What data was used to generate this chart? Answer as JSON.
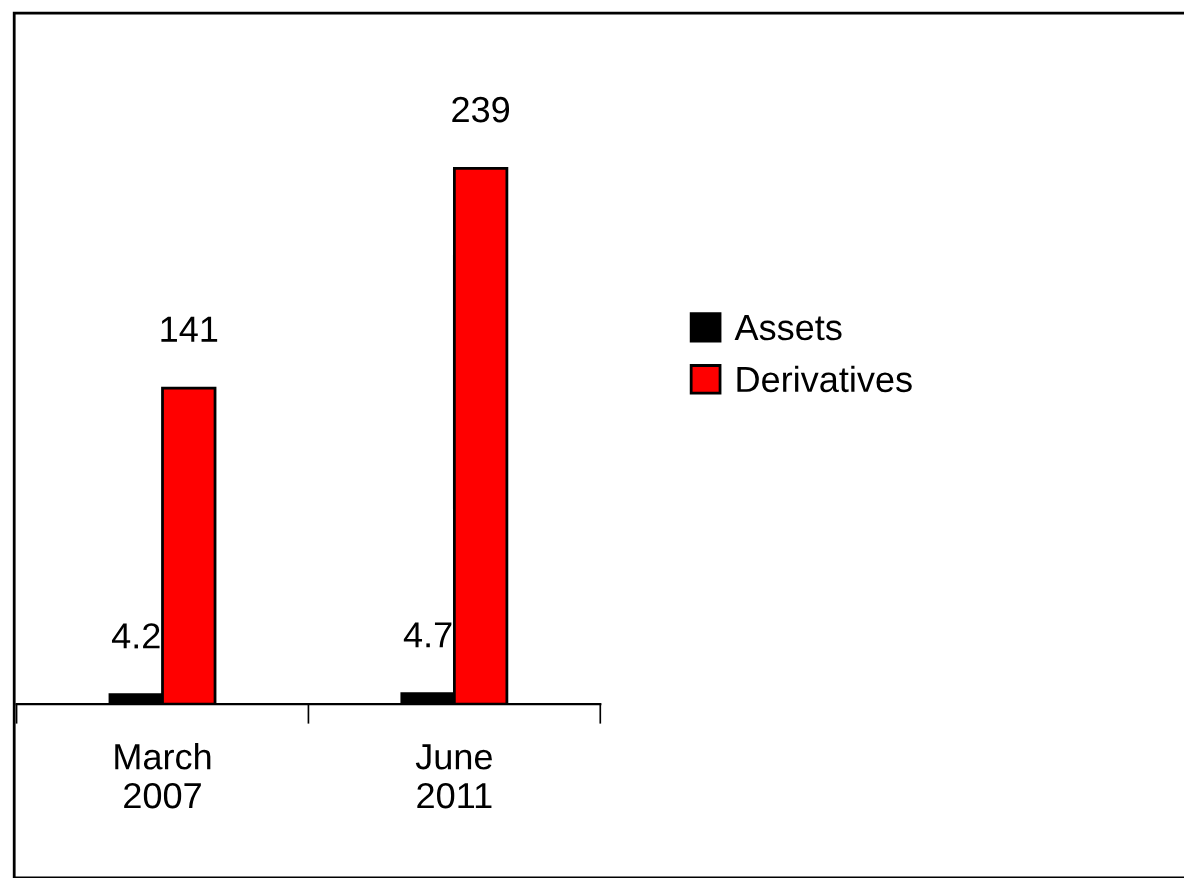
{
  "chart_data": {
    "type": "bar",
    "categories": [
      "March\n2007",
      "June\n2011"
    ],
    "series": [
      {
        "name": "Assets",
        "color": "#000000",
        "values": [
          4.2,
          4.7
        ]
      },
      {
        "name": "Derivatives",
        "color": "#ff0000",
        "values": [
          141,
          239
        ]
      }
    ],
    "data_labels": true,
    "legend": "right",
    "grid": false
  }
}
